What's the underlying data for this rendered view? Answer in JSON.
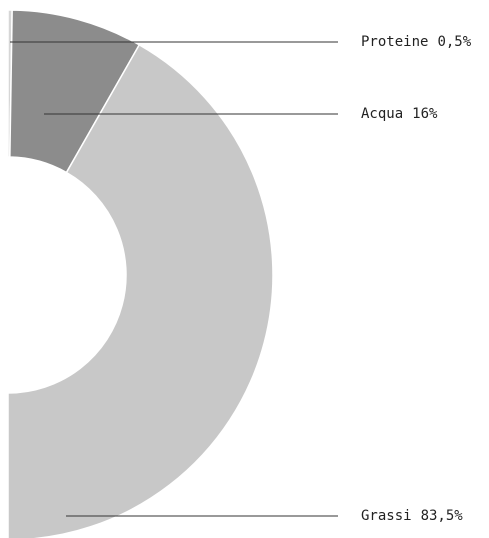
{
  "chart_data": {
    "type": "semi-donut",
    "categories": [
      "Proteine",
      "Acqua",
      "Grassi"
    ],
    "values": [
      0.5,
      16,
      83.5
    ],
    "value_labels": [
      "0,5%",
      "16%",
      "83,5%"
    ],
    "colors": [
      "#d6d6d6",
      "#8c8c8c",
      "#c8c8c8"
    ]
  }
}
